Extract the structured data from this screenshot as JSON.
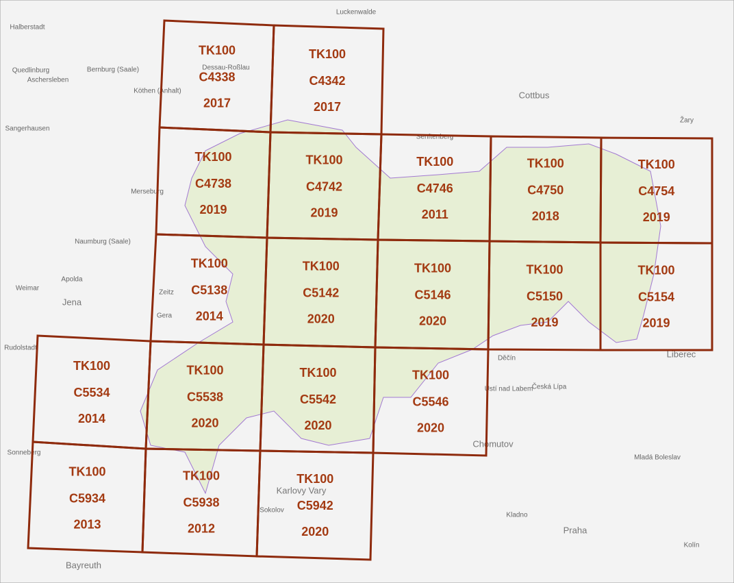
{
  "tiles": [
    {
      "series": "TK100",
      "sheet": "C4338",
      "year": "2017"
    },
    {
      "series": "TK100",
      "sheet": "C4342",
      "year": "2017"
    },
    {
      "series": "TK100",
      "sheet": "C4738",
      "year": "2019"
    },
    {
      "series": "TK100",
      "sheet": "C4742",
      "year": "2019"
    },
    {
      "series": "TK100",
      "sheet": "C4746",
      "year": "2011"
    },
    {
      "series": "TK100",
      "sheet": "C4750",
      "year": "2018"
    },
    {
      "series": "TK100",
      "sheet": "C4754",
      "year": "2019"
    },
    {
      "series": "TK100",
      "sheet": "C5138",
      "year": "2014"
    },
    {
      "series": "TK100",
      "sheet": "C5142",
      "year": "2020"
    },
    {
      "series": "TK100",
      "sheet": "C5146",
      "year": "2020"
    },
    {
      "series": "TK100",
      "sheet": "C5150",
      "year": "2019"
    },
    {
      "series": "TK100",
      "sheet": "C5154",
      "year": "2019"
    },
    {
      "series": "TK100",
      "sheet": "C5534",
      "year": "2014"
    },
    {
      "series": "TK100",
      "sheet": "C5538",
      "year": "2020"
    },
    {
      "series": "TK100",
      "sheet": "C5542",
      "year": "2020"
    },
    {
      "series": "TK100",
      "sheet": "C5546",
      "year": "2020"
    },
    {
      "series": "TK100",
      "sheet": "C5934",
      "year": "2013"
    },
    {
      "series": "TK100",
      "sheet": "C5938",
      "year": "2012"
    },
    {
      "series": "TK100",
      "sheet": "C5942",
      "year": "2020"
    }
  ],
  "places": [
    "Halberstadt",
    "Quedlinburg",
    "Aschersleben",
    "Bernburg (Saale)",
    "Köthen (Anhalt)",
    "Dessau-Roßlau",
    "Luckenwalde",
    "Cottbus",
    "Sangerhausen",
    "Merseburg",
    "Naumburg (Saale)",
    "Apolda",
    "Weimar",
    "Jena",
    "Gera",
    "Zeitz",
    "Rudolstadt",
    "Sonneberg",
    "Bayreuth",
    "Liberec",
    "Děčín",
    "Ústí nad Labem",
    "Česká Lípa",
    "Chomutov",
    "Karlovy Vary",
    "Sokolov",
    "Mladá Boleslav",
    "Praha",
    "Kladno",
    "Kolín",
    "Žary",
    "Senftenberg"
  ]
}
